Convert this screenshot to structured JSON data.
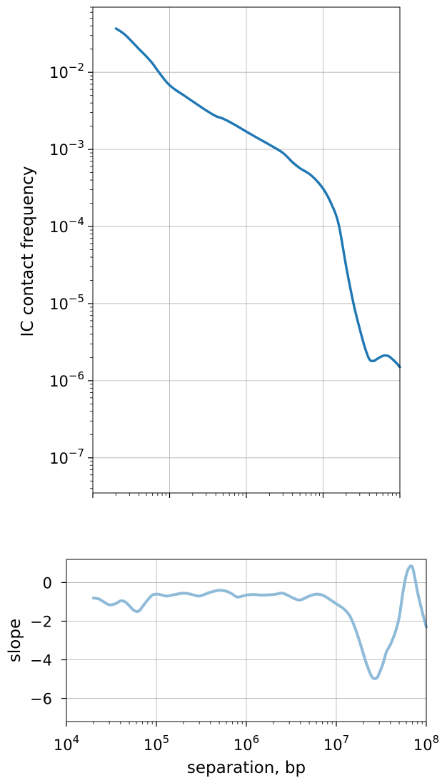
{
  "chart_data": [
    {
      "type": "line",
      "title": "",
      "xlabel": "",
      "ylabel": "IC contact frequency",
      "xscale": "log",
      "yscale": "log",
      "xlim": [
        10000,
        100000000
      ],
      "ylim": [
        3.5e-08,
        0.07
      ],
      "grid": true,
      "x_tick_labels_shown": false,
      "y_ticks": [
        {
          "value": 0.01,
          "base": "10",
          "exp": "−2"
        },
        {
          "value": 0.001,
          "base": "10",
          "exp": "−3"
        },
        {
          "value": 0.0001,
          "base": "10",
          "exp": "−4"
        },
        {
          "value": 1e-05,
          "base": "10",
          "exp": "−5"
        },
        {
          "value": 1e-06,
          "base": "10",
          "exp": "−6"
        },
        {
          "value": 1e-07,
          "base": "10",
          "exp": "−7"
        }
      ],
      "series": [
        {
          "color": "#1f77b4",
          "x": [
            20000,
            25000,
            30000,
            40000,
            50000,
            60000,
            70000,
            80000,
            90000,
            100000,
            120000,
            150000,
            200000,
            300000,
            400000,
            500000,
            700000,
            1000000,
            1500000,
            2000000,
            3000000,
            4000000,
            5000000,
            7000000,
            10000000,
            13000000,
            16000000,
            20000000,
            25000000,
            30000000,
            35000000,
            40000000,
            45000000,
            50000000,
            60000000,
            70000000,
            80000000,
            90000000,
            100000000
          ],
          "y": [
            0.037,
            0.032,
            0.027,
            0.02,
            0.016,
            0.013,
            0.0105,
            0.0088,
            0.0076,
            0.0068,
            0.0059,
            0.0051,
            0.0042,
            0.0032,
            0.0027,
            0.0025,
            0.0021,
            0.0017,
            0.00135,
            0.00115,
            0.0009,
            0.00068,
            0.00057,
            0.00046,
            0.00031,
            0.00019,
            0.000105,
            3e-05,
            9.8e-06,
            4.7e-06,
            2.7e-06,
            1.9e-06,
            1.8e-06,
            1.9e-06,
            2.1e-06,
            2.1e-06,
            1.9e-06,
            1.7e-06,
            1.5e-06
          ]
        }
      ]
    },
    {
      "type": "line",
      "title": "",
      "xlabel": "separation, bp",
      "ylabel": "slope",
      "xscale": "log",
      "xlim": [
        10000,
        100000000
      ],
      "ylim": [
        -7.2,
        1.2
      ],
      "grid": true,
      "x_ticks": [
        {
          "value": 10000,
          "base": "10",
          "exp": "4"
        },
        {
          "value": 100000,
          "base": "10",
          "exp": "5"
        },
        {
          "value": 1000000,
          "base": "10",
          "exp": "6"
        },
        {
          "value": 10000000,
          "base": "10",
          "exp": "7"
        },
        {
          "value": 100000000,
          "base": "10",
          "exp": "8"
        }
      ],
      "y_ticks": [
        {
          "value": 0,
          "label": "0"
        },
        {
          "value": -2,
          "label": "−2"
        },
        {
          "value": -4,
          "label": "−4"
        },
        {
          "value": -6,
          "label": "−6"
        }
      ],
      "series": [
        {
          "color": "#8fbbd9",
          "x": [
            20000,
            23000,
            26000,
            30000,
            35000,
            40000,
            45000,
            50000,
            55000,
            60000,
            65000,
            70000,
            80000,
            90000,
            100000,
            110000,
            130000,
            150000,
            200000,
            250000,
            300000,
            400000,
            500000,
            600000,
            700000,
            800000,
            1000000,
            1200000,
            1500000,
            2000000,
            2500000,
            3000000,
            3500000,
            4000000,
            5000000,
            6000000,
            7000000,
            8000000,
            10000000,
            12000000,
            14000000,
            16000000,
            18000000,
            20000000,
            22000000,
            25000000,
            28000000,
            30000000,
            33000000,
            36000000,
            40000000,
            45000000,
            50000000,
            55000000,
            60000000,
            65000000,
            70000000,
            75000000,
            80000000,
            90000000,
            100000000
          ],
          "y": [
            -0.8,
            -0.85,
            -1.0,
            -1.15,
            -1.1,
            -0.95,
            -1.0,
            -1.2,
            -1.4,
            -1.5,
            -1.45,
            -1.25,
            -0.9,
            -0.65,
            -0.6,
            -0.62,
            -0.7,
            -0.65,
            -0.55,
            -0.62,
            -0.7,
            -0.5,
            -0.4,
            -0.45,
            -0.6,
            -0.75,
            -0.65,
            -0.62,
            -0.65,
            -0.62,
            -0.55,
            -0.7,
            -0.85,
            -0.9,
            -0.7,
            -0.6,
            -0.65,
            -0.8,
            -1.1,
            -1.35,
            -1.7,
            -2.3,
            -3.0,
            -3.7,
            -4.3,
            -4.9,
            -4.95,
            -4.7,
            -4.2,
            -3.6,
            -3.2,
            -2.6,
            -1.8,
            -0.5,
            0.4,
            0.8,
            0.8,
            0.2,
            -0.5,
            -1.5,
            -2.3
          ]
        }
      ]
    }
  ]
}
